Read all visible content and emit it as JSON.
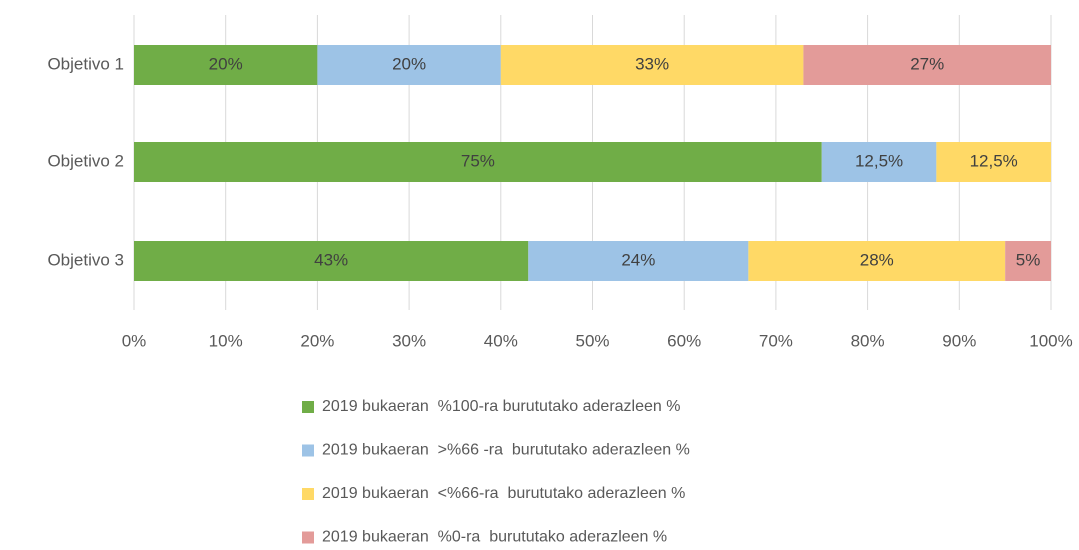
{
  "chart_data": {
    "type": "stacked-bar-horizontal",
    "categories": [
      "Objetivo 1",
      "Objetivo 2",
      "Objetivo 3"
    ],
    "series": [
      {
        "name": "2019 bukaeran  %100-ra burututako aderazleen %",
        "color": "#70ad47",
        "values": [
          20,
          75,
          43
        ],
        "value_labels": [
          "20%",
          "75%",
          "43%"
        ]
      },
      {
        "name": "2019 bukaeran  >%66 -ra  burututako aderazleen %",
        "color": "#9dc3e6",
        "values": [
          20,
          12.5,
          24
        ],
        "value_labels": [
          "20%",
          "12,5%",
          "24%"
        ]
      },
      {
        "name": "2019 bukaeran  <%66-ra  burututako aderazleen %",
        "color": "#ffd966",
        "values": [
          33,
          12.5,
          28
        ],
        "value_labels": [
          "33%",
          "12,5%",
          "28%"
        ]
      },
      {
        "name": "2019 bukaeran  %0-ra  burututako aderazleen %",
        "color": "#e39b99",
        "values": [
          27,
          null,
          5
        ],
        "value_labels": [
          "27%",
          null,
          "5%"
        ]
      }
    ],
    "xlim": [
      0,
      100
    ],
    "xticks": [
      {
        "value": 0,
        "label": "0%"
      },
      {
        "value": 10,
        "label": "10%"
      },
      {
        "value": 20,
        "label": "20%"
      },
      {
        "value": 30,
        "label": "30%"
      },
      {
        "value": 40,
        "label": "40%"
      },
      {
        "value": 50,
        "label": "50%"
      },
      {
        "value": 60,
        "label": "60%"
      },
      {
        "value": 70,
        "label": "70%"
      },
      {
        "value": 80,
        "label": "80%"
      },
      {
        "value": 90,
        "label": "90%"
      },
      {
        "value": 100,
        "label": "100%"
      }
    ],
    "grid": true,
    "legend": "bottom"
  }
}
